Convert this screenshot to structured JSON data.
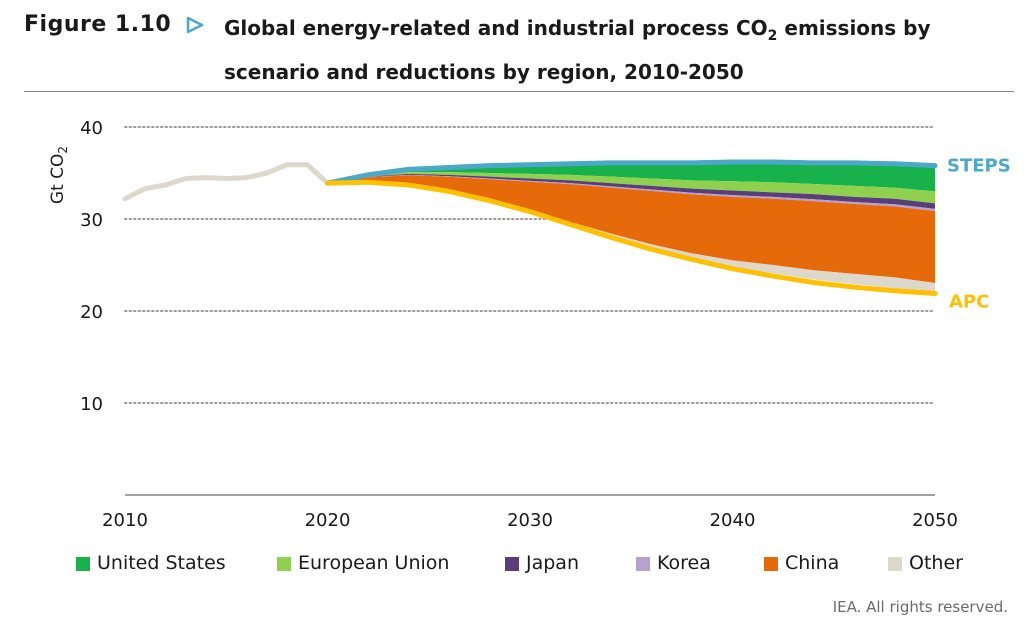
{
  "figure": {
    "label": "Figure 1.10",
    "title_line1_pre": "Global energy-related and industrial process CO",
    "title_line1_sub": "2",
    "title_line1_post": " emissions by",
    "title_line2": "scenario and reductions by region, 2010-2050",
    "credit": "IEA. All rights reserved."
  },
  "colors": {
    "accent": "#4aa8c8",
    "united_states": "#17b24b",
    "european_union": "#8fd14f",
    "japan": "#5a3e7a",
    "korea": "#b6a1cf",
    "china": "#e6690a",
    "other": "#ddd8cc",
    "steps": "#4aa8c8",
    "apc": "#ffc000",
    "history": "#ddd8cc"
  },
  "chart_data": {
    "type": "area",
    "ylabel_main": "Gt CO",
    "ylabel_sub": "2",
    "ylim": [
      0,
      40
    ],
    "yticks": [
      10,
      20,
      30,
      40
    ],
    "xlim": [
      2010,
      2050
    ],
    "xticks": [
      2010,
      2020,
      2030,
      2040,
      2050
    ],
    "grid": "dotted horizontal",
    "legend_position": "bottom",
    "history": {
      "x": [
        2010,
        2011,
        2012,
        2013,
        2014,
        2015,
        2016,
        2017,
        2018,
        2019,
        2020
      ],
      "y": [
        32.2,
        33.3,
        33.7,
        34.4,
        34.5,
        34.4,
        34.5,
        35.0,
        35.9,
        35.9,
        33.9
      ]
    },
    "x": [
      2020,
      2022,
      2024,
      2026,
      2028,
      2030,
      2032,
      2034,
      2036,
      2038,
      2040,
      2042,
      2044,
      2046,
      2048,
      2050
    ],
    "steps": [
      33.9,
      34.8,
      35.4,
      35.6,
      35.8,
      35.9,
      36.0,
      36.1,
      36.1,
      36.1,
      36.2,
      36.2,
      36.1,
      36.1,
      36.0,
      35.8
    ],
    "apc": [
      33.9,
      34.0,
      33.7,
      33.0,
      32.0,
      30.8,
      29.4,
      28.0,
      26.7,
      25.6,
      24.6,
      23.8,
      23.1,
      22.6,
      22.2,
      21.9
    ],
    "series": [
      {
        "name": "United States",
        "key": "united_states",
        "values": [
          0,
          0.1,
          0.3,
          0.5,
          0.8,
          1.0,
          1.2,
          1.5,
          1.7,
          1.9,
          2.1,
          2.2,
          2.3,
          2.5,
          2.6,
          2.8
        ]
      },
      {
        "name": "European Union",
        "key": "european_union",
        "values": [
          0,
          0.1,
          0.2,
          0.3,
          0.4,
          0.5,
          0.6,
          0.7,
          0.8,
          0.9,
          1.0,
          1.1,
          1.1,
          1.2,
          1.2,
          1.3
        ]
      },
      {
        "name": "Japan",
        "key": "japan",
        "values": [
          0,
          0.05,
          0.1,
          0.15,
          0.2,
          0.25,
          0.3,
          0.35,
          0.4,
          0.45,
          0.5,
          0.5,
          0.55,
          0.55,
          0.6,
          0.6
        ]
      },
      {
        "name": "Korea",
        "key": "korea",
        "values": [
          0,
          0.02,
          0.04,
          0.06,
          0.08,
          0.1,
          0.12,
          0.14,
          0.16,
          0.18,
          0.2,
          0.2,
          0.22,
          0.22,
          0.24,
          0.25
        ]
      },
      {
        "name": "China",
        "key": "china",
        "values": [
          0,
          0.5,
          1.0,
          1.6,
          2.3,
          3.1,
          4.1,
          5.0,
          5.8,
          6.4,
          6.9,
          7.2,
          7.5,
          7.6,
          7.7,
          7.8
        ]
      },
      {
        "name": "Other",
        "key": "other",
        "values": [
          0,
          0.03,
          0.06,
          0.09,
          0.12,
          0.15,
          0.28,
          0.41,
          0.54,
          0.67,
          0.8,
          0.9,
          1.0,
          1.1,
          1.2,
          1.15
        ]
      }
    ],
    "annotations": [
      "STEPS",
      "APC"
    ]
  }
}
